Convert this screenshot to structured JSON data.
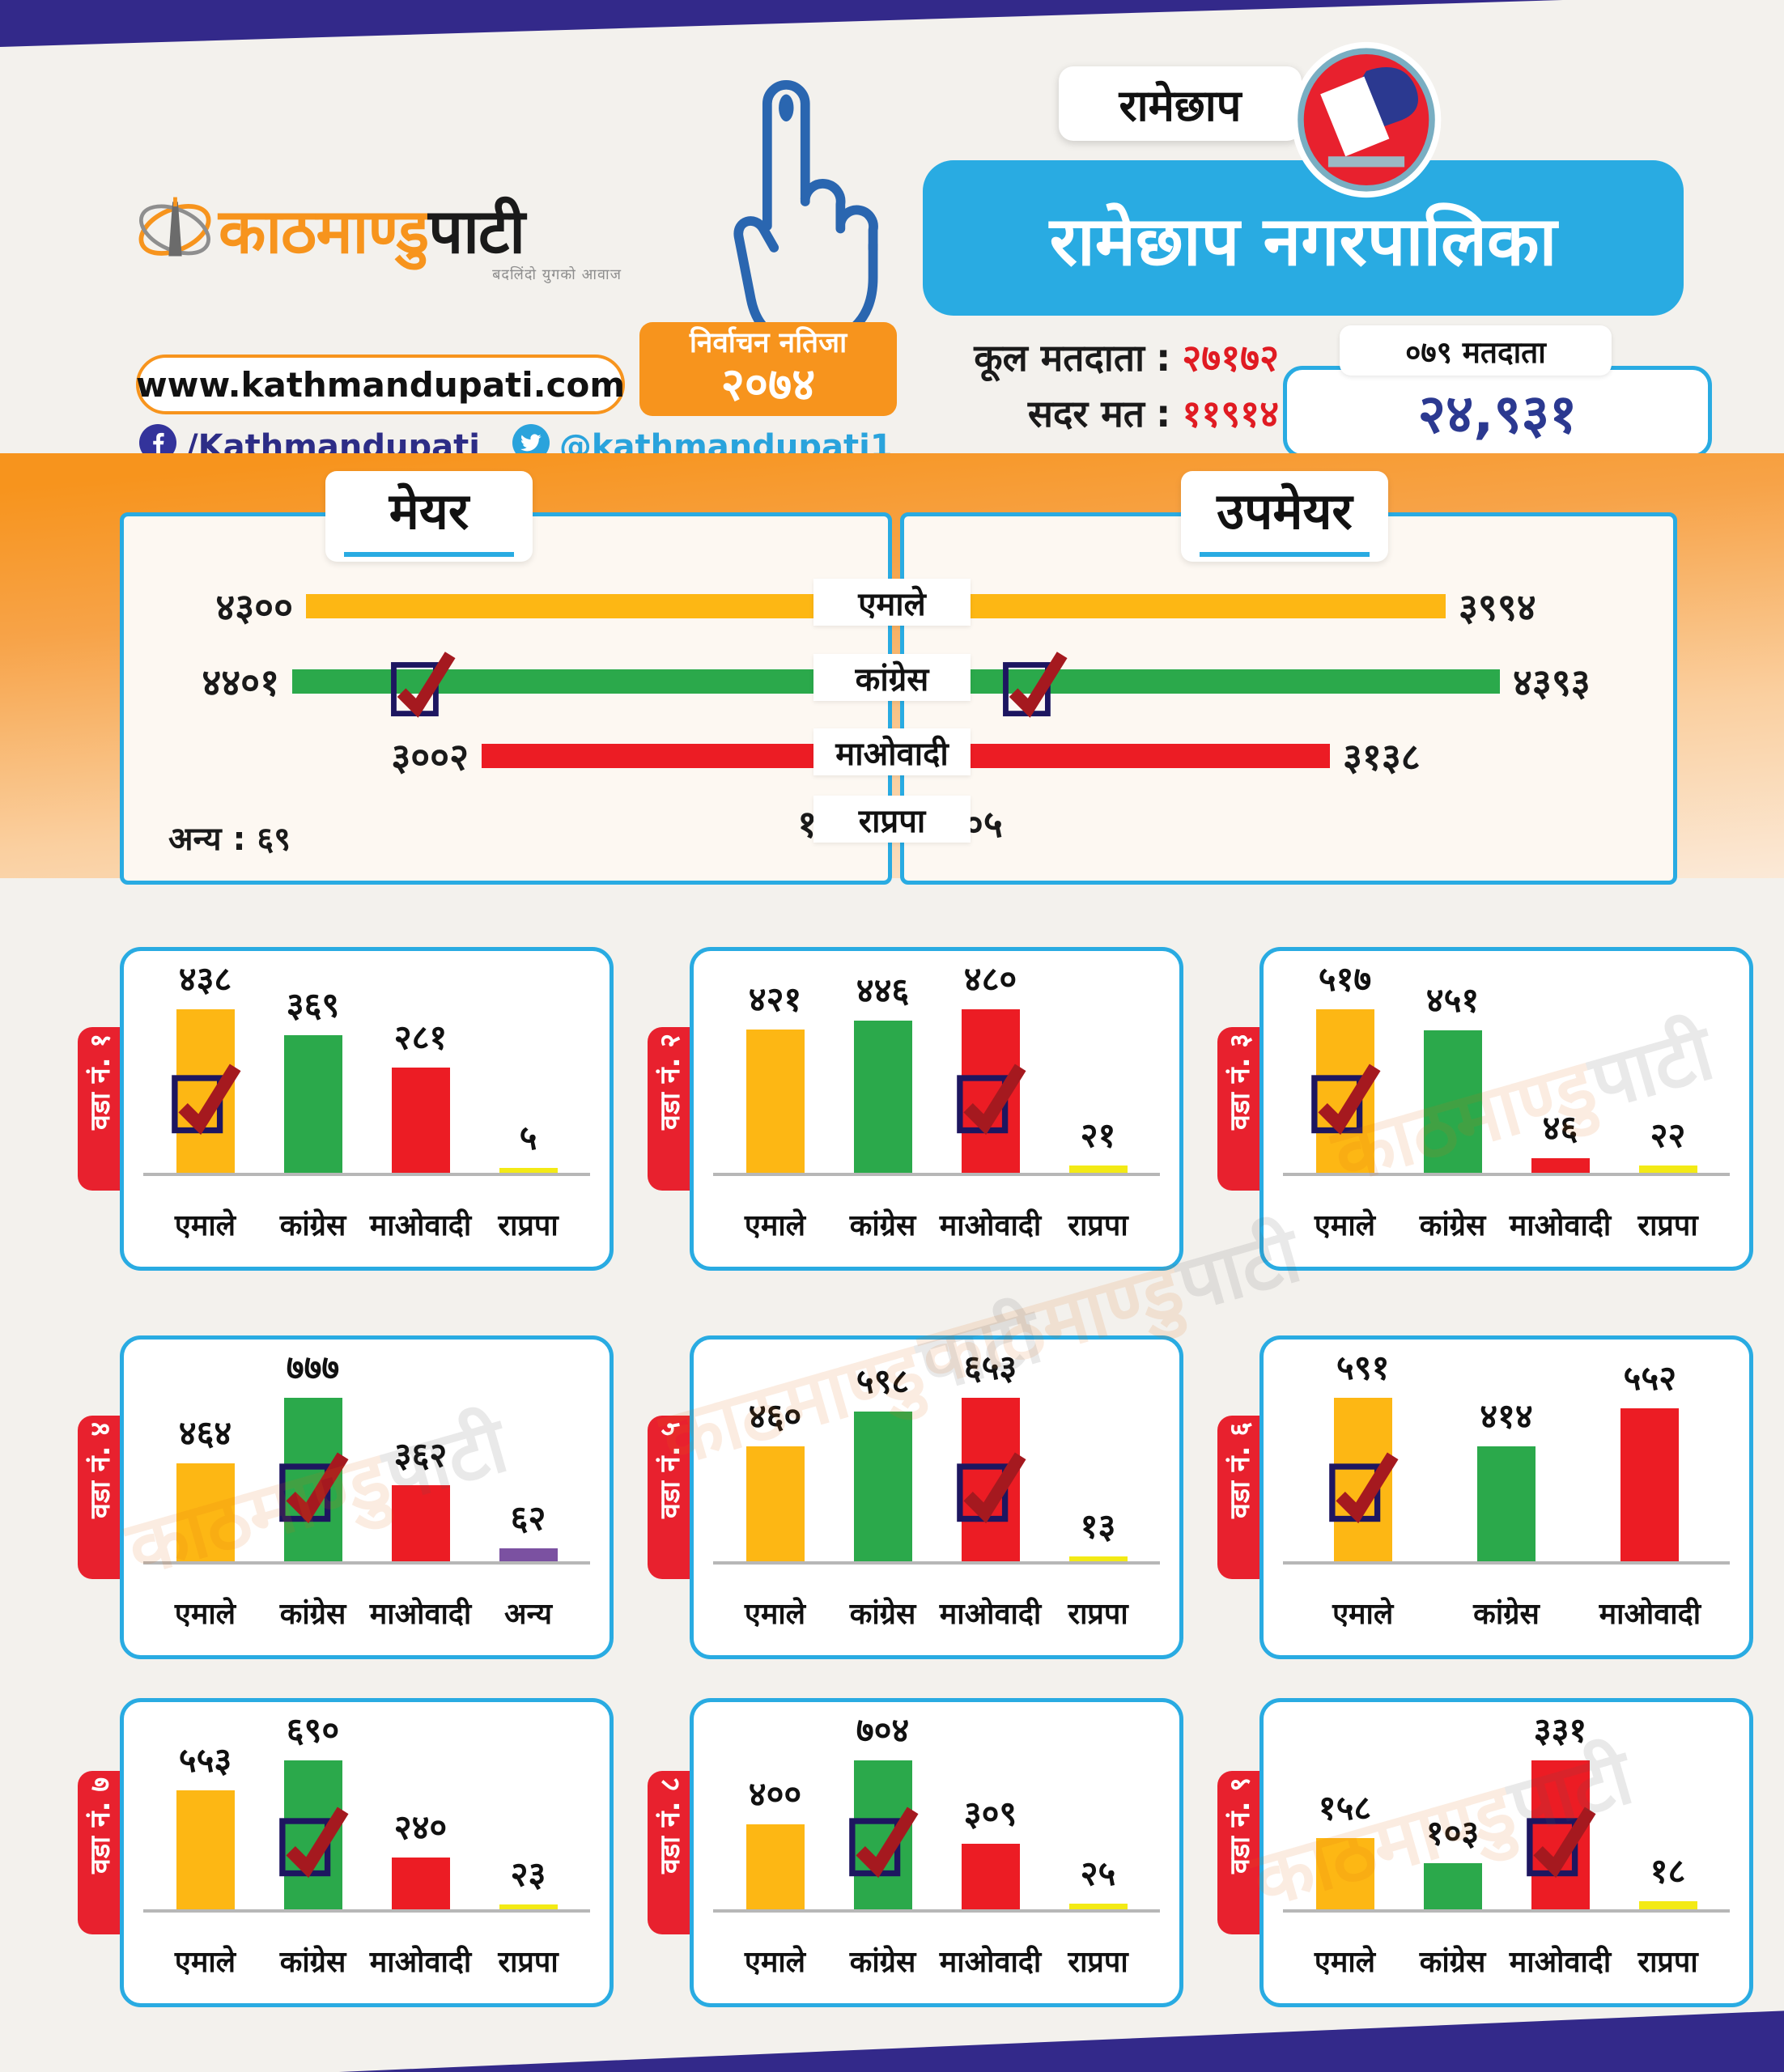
{
  "brand": {
    "logo_orange": "काठमाण्डु",
    "logo_black": "पाटी",
    "tagline": "बदलिंदो युगको आवाज",
    "website": "www.kathmandupati.com",
    "facebook_handle": "/Kathmandupati",
    "twitter_handle": "@kathmandupati1",
    "watermark_orange": "काठमाण्डु",
    "watermark_gray": "पाटी"
  },
  "header": {
    "badge_line1": "निर्वाचन नतिजा",
    "badge_line2": "२०७४",
    "district_label": "रामेछाप",
    "title": "रामेछाप नगरपालिका",
    "total_voters_label": "कूल मतदाता",
    "total_voters_colon": ":",
    "total_voters_value": "२७१७२",
    "valid_votes_label": "सदर मत",
    "valid_votes_colon": ":",
    "valid_votes_value": "११९१४",
    "voters_box_label": "०७९ मतदाता",
    "voters_box_value": "२४,९३१"
  },
  "party_labels": [
    "एमाले",
    "कांग्रेस",
    "माओवादी",
    "राप्रपा"
  ],
  "party_colors": {
    "एमाले": "#FDB714",
    "कांग्रेस": "#2BA94B",
    "माओवादी": "#EC1C24",
    "राप्रपा": "#F3EA15",
    "अन्य": "#7B51A1"
  },
  "chart_data": [
    {
      "id": "mayor",
      "kind": "race",
      "type": "bar",
      "orientation": "horizontal",
      "title": "मेयर",
      "categories": [
        "एमाले",
        "कांग्रेस",
        "माओवादी",
        "राप्रपा"
      ],
      "values": [
        4300,
        4401,
        3002,
        142
      ],
      "value_labels": [
        "४३००",
        "४४०१",
        "३००२",
        "१४२"
      ],
      "winner": "कांग्रेस",
      "annotation": "अन्य : ६९"
    },
    {
      "id": "deputy",
      "kind": "race",
      "type": "bar",
      "orientation": "horizontal",
      "title": "उपमेयर",
      "categories": [
        "एमाले",
        "कांग्रेस",
        "माओवादी",
        "राप्रपा"
      ],
      "values": [
        3994,
        4393,
        3138,
        205
      ],
      "value_labels": [
        "३९९४",
        "४३९३",
        "३१३८",
        "२०५"
      ],
      "winner": "कांग्रेस",
      "annotation": ""
    },
    {
      "id": "ward-1",
      "kind": "ward",
      "type": "bar",
      "title": "वडा नं. १",
      "categories": [
        "एमाले",
        "कांग्रेस",
        "माओवादी",
        "राप्रपा"
      ],
      "values": [
        438,
        369,
        281,
        5
      ],
      "value_labels": [
        "४३८",
        "३६९",
        "२८१",
        "५"
      ],
      "winner": "एमाले"
    },
    {
      "id": "ward-2",
      "kind": "ward",
      "type": "bar",
      "title": "वडा नं. २",
      "categories": [
        "एमाले",
        "कांग्रेस",
        "माओवादी",
        "राप्रपा"
      ],
      "values": [
        421,
        446,
        480,
        21
      ],
      "value_labels": [
        "४२१",
        "४४६",
        "४८०",
        "२१"
      ],
      "winner": "माओवादी"
    },
    {
      "id": "ward-3",
      "kind": "ward",
      "type": "bar",
      "title": "वडा नं. ३",
      "categories": [
        "एमाले",
        "कांग्रेस",
        "माओवादी",
        "राप्रपा"
      ],
      "values": [
        517,
        451,
        46,
        22
      ],
      "value_labels": [
        "५१७",
        "४५१",
        "४६",
        "२२"
      ],
      "winner": "एमाले"
    },
    {
      "id": "ward-4",
      "kind": "ward",
      "type": "bar",
      "title": "वडा नं. ४",
      "categories": [
        "एमाले",
        "कांग्रेस",
        "माओवादी",
        "अन्य"
      ],
      "values": [
        464,
        777,
        362,
        62
      ],
      "value_labels": [
        "४६४",
        "७७७",
        "३६२",
        "६२"
      ],
      "winner": "कांग्रेस"
    },
    {
      "id": "ward-5",
      "kind": "ward",
      "type": "bar",
      "title": "वडा नं. ५",
      "categories": [
        "एमाले",
        "कांग्रेस",
        "माओवादी",
        "राप्रपा"
      ],
      "values": [
        460,
        598,
        653,
        13
      ],
      "value_labels": [
        "४६०",
        "५९८",
        "६५३",
        "१३"
      ],
      "winner": "माओवादी"
    },
    {
      "id": "ward-6",
      "kind": "ward",
      "type": "bar",
      "title": "वडा नं. ६",
      "categories": [
        "एमाले",
        "कांग्रेस",
        "माओवादी"
      ],
      "values": [
        591,
        414,
        552
      ],
      "value_labels": [
        "५९१",
        "४१४",
        "५५२"
      ],
      "winner": "एमाले"
    },
    {
      "id": "ward-7",
      "kind": "ward",
      "type": "bar",
      "title": "वडा नं. ७",
      "categories": [
        "एमाले",
        "कांग्रेस",
        "माओवादी",
        "राप्रपा"
      ],
      "values": [
        553,
        690,
        240,
        23
      ],
      "value_labels": [
        "५५३",
        "६९०",
        "२४०",
        "२३"
      ],
      "winner": "कांग्रेस"
    },
    {
      "id": "ward-8",
      "kind": "ward",
      "type": "bar",
      "title": "वडा नं. ८",
      "categories": [
        "एमाले",
        "कांग्रेस",
        "माओवादी",
        "राप्रपा"
      ],
      "values": [
        400,
        704,
        309,
        25
      ],
      "value_labels": [
        "४००",
        "७०४",
        "३०९",
        "२५"
      ],
      "winner": "कांग्रेस"
    },
    {
      "id": "ward-9",
      "kind": "ward",
      "type": "bar",
      "title": "वडा नं. ९",
      "categories": [
        "एमाले",
        "कांग्रेस",
        "माओवादी",
        "राप्रपा"
      ],
      "values": [
        158,
        103,
        331,
        18
      ],
      "value_labels": [
        "१५८",
        "१०३",
        "३३१",
        "१८"
      ],
      "winner": "माओवादी"
    }
  ]
}
